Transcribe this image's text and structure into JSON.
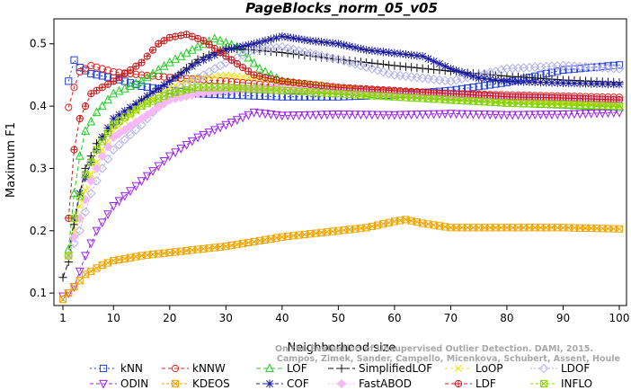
{
  "chart_data": {
    "type": "line",
    "title": "PageBlocks_norm_05_v05",
    "xlabel": "Neighborhood size",
    "ylabel": "Maximum F1",
    "xlim": [
      1,
      100
    ],
    "ylim": [
      0.08,
      0.54
    ],
    "xticks": [
      1,
      10,
      20,
      30,
      40,
      50,
      60,
      70,
      80,
      90,
      100
    ],
    "yticks": [
      0.1,
      0.2,
      0.3,
      0.4,
      0.5
    ],
    "grid": false,
    "legend_position": "bottom",
    "watermark": [
      "Campos, Zimek, Sander, Campello, Micenkova, Schubert, Assent, Houle",
      "On the Evaluation of Unsupervised Outlier Detection. DAMI, 2015."
    ],
    "series": [
      {
        "name": "kNN",
        "color": "#1f3fdb",
        "marker": "square",
        "dash": "2,3",
        "points": [
          [
            2,
            0.44
          ],
          [
            3,
            0.474
          ],
          [
            4,
            0.462
          ],
          [
            6,
            0.452
          ],
          [
            10,
            0.445
          ],
          [
            15,
            0.432
          ],
          [
            20,
            0.425
          ],
          [
            25,
            0.42
          ],
          [
            30,
            0.418
          ],
          [
            40,
            0.415
          ],
          [
            50,
            0.415
          ],
          [
            60,
            0.418
          ],
          [
            70,
            0.425
          ],
          [
            80,
            0.438
          ],
          [
            90,
            0.458
          ],
          [
            100,
            0.466
          ]
        ]
      },
      {
        "name": "kNNW",
        "color": "#e0231c",
        "marker": "circle",
        "dash": "4,3",
        "points": [
          [
            2,
            0.398
          ],
          [
            3,
            0.43
          ],
          [
            4,
            0.455
          ],
          [
            6,
            0.465
          ],
          [
            10,
            0.455
          ],
          [
            15,
            0.45
          ],
          [
            20,
            0.446
          ],
          [
            30,
            0.44
          ],
          [
            40,
            0.432
          ],
          [
            50,
            0.428
          ],
          [
            60,
            0.423
          ],
          [
            70,
            0.42
          ],
          [
            80,
            0.418
          ],
          [
            90,
            0.416
          ],
          [
            100,
            0.414
          ]
        ]
      },
      {
        "name": "LOF",
        "color": "#22cc22",
        "marker": "triangle",
        "dash": "5,3",
        "points": [
          [
            2,
            0.17
          ],
          [
            3,
            0.26
          ],
          [
            4,
            0.32
          ],
          [
            5,
            0.36
          ],
          [
            7,
            0.39
          ],
          [
            10,
            0.42
          ],
          [
            15,
            0.44
          ],
          [
            20,
            0.47
          ],
          [
            25,
            0.495
          ],
          [
            28,
            0.508
          ],
          [
            32,
            0.495
          ],
          [
            36,
            0.46
          ],
          [
            40,
            0.44
          ],
          [
            50,
            0.425
          ],
          [
            60,
            0.415
          ],
          [
            70,
            0.41
          ],
          [
            80,
            0.405
          ],
          [
            90,
            0.402
          ],
          [
            100,
            0.398
          ]
        ]
      },
      {
        "name": "SimplifiedLOF",
        "color": "#111111",
        "marker": "plus",
        "dash": "6,3",
        "points": [
          [
            1,
            0.125
          ],
          [
            2,
            0.15
          ],
          [
            3,
            0.21
          ],
          [
            4,
            0.26
          ],
          [
            5,
            0.3
          ],
          [
            7,
            0.34
          ],
          [
            10,
            0.37
          ],
          [
            15,
            0.41
          ],
          [
            20,
            0.44
          ],
          [
            25,
            0.475
          ],
          [
            30,
            0.493
          ],
          [
            35,
            0.49
          ],
          [
            40,
            0.486
          ],
          [
            50,
            0.475
          ],
          [
            60,
            0.465
          ],
          [
            70,
            0.456
          ],
          [
            80,
            0.448
          ],
          [
            90,
            0.442
          ],
          [
            100,
            0.438
          ]
        ]
      },
      {
        "name": "LoOP",
        "color": "#f0e400",
        "marker": "cross",
        "dash": "3,3",
        "points": [
          [
            2,
            0.16
          ],
          [
            3,
            0.2
          ],
          [
            4,
            0.24
          ],
          [
            6,
            0.29
          ],
          [
            8,
            0.33
          ],
          [
            10,
            0.36
          ],
          [
            15,
            0.4
          ],
          [
            20,
            0.43
          ],
          [
            25,
            0.445
          ],
          [
            30,
            0.45
          ],
          [
            40,
            0.44
          ],
          [
            50,
            0.43
          ],
          [
            60,
            0.42
          ],
          [
            70,
            0.415
          ],
          [
            80,
            0.41
          ],
          [
            90,
            0.405
          ],
          [
            100,
            0.4
          ]
        ]
      },
      {
        "name": "LDOF",
        "color": "#b0b0f0",
        "marker": "diamond",
        "dash": "2,2",
        "points": [
          [
            2,
            0.16
          ],
          [
            4,
            0.2
          ],
          [
            6,
            0.26
          ],
          [
            8,
            0.3
          ],
          [
            10,
            0.33
          ],
          [
            15,
            0.37
          ],
          [
            20,
            0.42
          ],
          [
            25,
            0.445
          ],
          [
            30,
            0.47
          ],
          [
            35,
            0.49
          ],
          [
            40,
            0.495
          ],
          [
            45,
            0.485
          ],
          [
            50,
            0.475
          ],
          [
            60,
            0.45
          ],
          [
            70,
            0.44
          ],
          [
            80,
            0.46
          ],
          [
            90,
            0.465
          ],
          [
            100,
            0.46
          ]
        ]
      },
      {
        "name": "ODIN",
        "color": "#9b22ee",
        "marker": "triangle-down",
        "dash": "4,3",
        "points": [
          [
            1,
            0.095
          ],
          [
            2,
            0.1
          ],
          [
            3,
            0.11
          ],
          [
            5,
            0.16
          ],
          [
            7,
            0.2
          ],
          [
            10,
            0.24
          ],
          [
            15,
            0.28
          ],
          [
            20,
            0.32
          ],
          [
            25,
            0.35
          ],
          [
            30,
            0.37
          ],
          [
            35,
            0.39
          ],
          [
            40,
            0.385
          ],
          [
            50,
            0.387
          ],
          [
            60,
            0.386
          ],
          [
            70,
            0.388
          ],
          [
            80,
            0.386
          ],
          [
            90,
            0.387
          ],
          [
            100,
            0.39
          ]
        ]
      },
      {
        "name": "KDEOS",
        "color": "#f0a500",
        "marker": "square-x",
        "dash": "3,2",
        "points": [
          [
            1,
            0.09
          ],
          [
            2,
            0.1
          ],
          [
            3,
            0.11
          ],
          [
            5,
            0.13
          ],
          [
            8,
            0.145
          ],
          [
            10,
            0.152
          ],
          [
            15,
            0.16
          ],
          [
            20,
            0.165
          ],
          [
            30,
            0.175
          ],
          [
            40,
            0.19
          ],
          [
            50,
            0.2
          ],
          [
            55,
            0.205
          ],
          [
            60,
            0.215
          ],
          [
            62,
            0.218
          ],
          [
            65,
            0.212
          ],
          [
            70,
            0.205
          ],
          [
            80,
            0.205
          ],
          [
            90,
            0.205
          ],
          [
            100,
            0.203
          ]
        ]
      },
      {
        "name": "COF",
        "color": "#1a1a9c",
        "marker": "asterisk",
        "dash": "4,3",
        "points": [
          [
            2,
            0.16
          ],
          [
            3,
            0.22
          ],
          [
            4,
            0.26
          ],
          [
            6,
            0.31
          ],
          [
            8,
            0.35
          ],
          [
            10,
            0.38
          ],
          [
            15,
            0.41
          ],
          [
            20,
            0.44
          ],
          [
            25,
            0.47
          ],
          [
            30,
            0.49
          ],
          [
            35,
            0.5
          ],
          [
            40,
            0.512
          ],
          [
            45,
            0.505
          ],
          [
            50,
            0.5
          ],
          [
            55,
            0.49
          ],
          [
            60,
            0.485
          ],
          [
            65,
            0.48
          ],
          [
            70,
            0.46
          ],
          [
            75,
            0.445
          ],
          [
            80,
            0.44
          ],
          [
            90,
            0.437
          ],
          [
            100,
            0.435
          ]
        ]
      },
      {
        "name": "FastABOD",
        "color": "#f7b8f7",
        "marker": "diamond-filled",
        "dash": "2,2",
        "points": [
          [
            2,
            0.16
          ],
          [
            4,
            0.22
          ],
          [
            6,
            0.28
          ],
          [
            8,
            0.32
          ],
          [
            10,
            0.35
          ],
          [
            15,
            0.38
          ],
          [
            20,
            0.41
          ],
          [
            25,
            0.42
          ],
          [
            30,
            0.425
          ],
          [
            40,
            0.43
          ],
          [
            50,
            0.425
          ],
          [
            60,
            0.42
          ],
          [
            70,
            0.418
          ],
          [
            80,
            0.415
          ],
          [
            90,
            0.413
          ],
          [
            100,
            0.41
          ]
        ]
      },
      {
        "name": "LDF",
        "color": "#c41a1a",
        "marker": "circle-plus",
        "dash": "4,3",
        "points": [
          [
            2,
            0.22
          ],
          [
            3,
            0.33
          ],
          [
            4,
            0.38
          ],
          [
            6,
            0.42
          ],
          [
            8,
            0.43
          ],
          [
            10,
            0.44
          ],
          [
            15,
            0.47
          ],
          [
            18,
            0.5
          ],
          [
            20,
            0.51
          ],
          [
            23,
            0.515
          ],
          [
            26,
            0.505
          ],
          [
            30,
            0.48
          ],
          [
            35,
            0.45
          ],
          [
            40,
            0.44
          ],
          [
            50,
            0.43
          ],
          [
            60,
            0.425
          ],
          [
            70,
            0.42
          ],
          [
            80,
            0.415
          ],
          [
            90,
            0.413
          ],
          [
            100,
            0.41
          ]
        ]
      },
      {
        "name": "INFLO",
        "color": "#8ad400",
        "marker": "square-x",
        "dash": "3,3",
        "points": [
          [
            2,
            0.16
          ],
          [
            3,
            0.22
          ],
          [
            5,
            0.29
          ],
          [
            7,
            0.33
          ],
          [
            10,
            0.37
          ],
          [
            15,
            0.4
          ],
          [
            20,
            0.42
          ],
          [
            25,
            0.43
          ],
          [
            30,
            0.43
          ],
          [
            40,
            0.425
          ],
          [
            50,
            0.42
          ],
          [
            60,
            0.415
          ],
          [
            70,
            0.41
          ],
          [
            80,
            0.405
          ],
          [
            90,
            0.403
          ],
          [
            100,
            0.4
          ]
        ]
      }
    ]
  }
}
